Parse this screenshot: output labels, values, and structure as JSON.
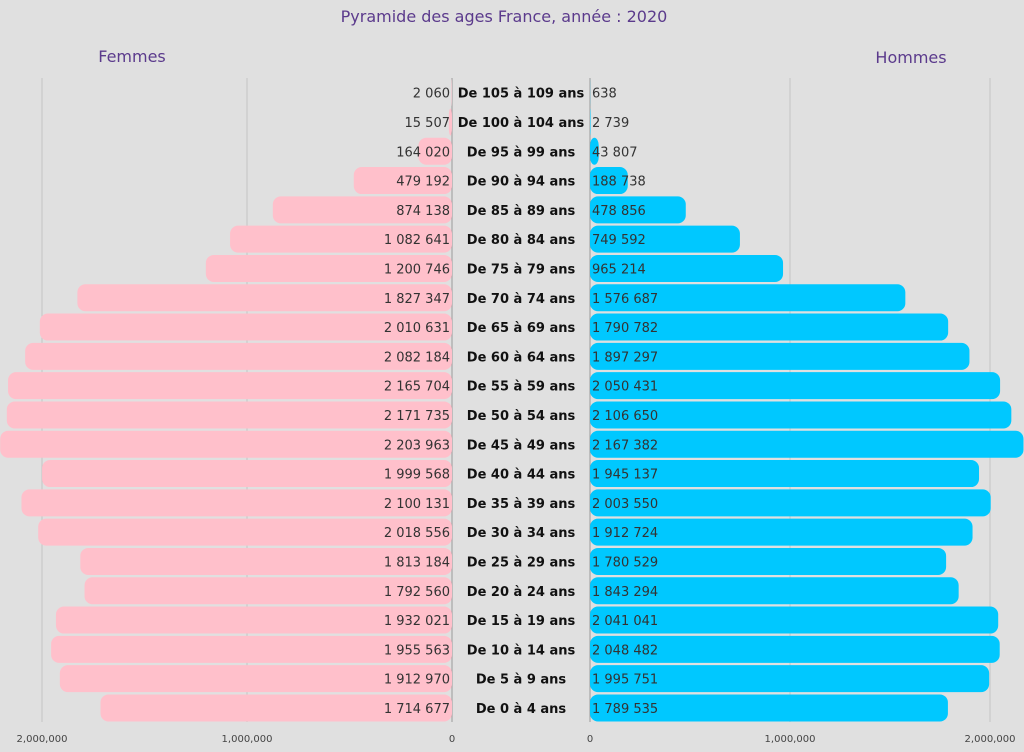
{
  "chart_data": {
    "type": "bar",
    "orientation": "horizontal-population-pyramid",
    "title": "Pyramide des ages France, année :  2020",
    "left_label": "Femmes",
    "right_label": "Hommes",
    "categories": [
      "De 105 à 109 ans",
      "De 100 à 104 ans",
      "De 95 à 99 ans",
      "De 90 à 94 ans",
      "De 85 à 89 ans",
      "De 80 à 84 ans",
      "De 75 à 79 ans",
      "De 70 à 74 ans",
      "De 65 à 69 ans",
      "De 60 à 64 ans",
      "De 55 à 59 ans",
      "De 50 à 54 ans",
      "De 45 à 49 ans",
      "De 40 à 44 ans",
      "De 35 à 39 ans",
      "De 30 à 34 ans",
      "De 25 à 29 ans",
      "De 20 à 24 ans",
      "De 15 à 19 ans",
      "De 10 à 14 ans",
      "De 5 à 9 ans",
      "De 0 à 4 ans"
    ],
    "series": [
      {
        "name": "Femmes",
        "color": "#ffc0cb",
        "values": [
          2060,
          15507,
          164020,
          479192,
          874138,
          1082641,
          1200746,
          1827347,
          2010631,
          2082184,
          2165704,
          2171735,
          2203963,
          1999568,
          2100131,
          2018556,
          1813184,
          1792560,
          1932021,
          1955563,
          1912970,
          1714677
        ],
        "labels": [
          "2 060",
          "15 507",
          "164 020",
          "479 192",
          "874 138",
          "1 082 641",
          "1 200 746",
          "1 827 347",
          "2 010 631",
          "2 082 184",
          "2 165 704",
          "2 171 735",
          "2 203 963",
          "1 999 568",
          "2 100 131",
          "2 018 556",
          "1 813 184",
          "1 792 560",
          "1 932 021",
          "1 955 563",
          "1 912 970",
          "1 714 677"
        ]
      },
      {
        "name": "Hommes",
        "color": "#00c8ff",
        "values": [
          638,
          2739,
          43807,
          188738,
          478856,
          749592,
          965214,
          1576687,
          1790782,
          1897297,
          2050431,
          2106650,
          2167382,
          1945137,
          2003550,
          1912724,
          1780529,
          1843294,
          2041041,
          2048482,
          1995751,
          1789535
        ],
        "labels": [
          "638",
          "2 739",
          "43 807",
          "188 738",
          "478 856",
          "749 592",
          "965 214",
          "1 576 687",
          "1 790 782",
          "1 897 297",
          "2 050 431",
          "2 106 650",
          "2 167 382",
          "1 945 137",
          "2 003 550",
          "1 912 724",
          "1 780 529",
          "1 843 294",
          "2 041 041",
          "2 048 482",
          "1 995 751",
          "1 789 535"
        ]
      }
    ],
    "left_ticks": [
      {
        "value": 2000000,
        "label": "2,000,000"
      },
      {
        "value": 1000000,
        "label": "1,000,000"
      },
      {
        "value": 0,
        "label": "0"
      }
    ],
    "right_ticks": [
      {
        "value": 0,
        "label": "0"
      },
      {
        "value": 1000000,
        "label": "1,000,000"
      },
      {
        "value": 2000000,
        "label": "2,000,000"
      }
    ],
    "grid": true
  }
}
